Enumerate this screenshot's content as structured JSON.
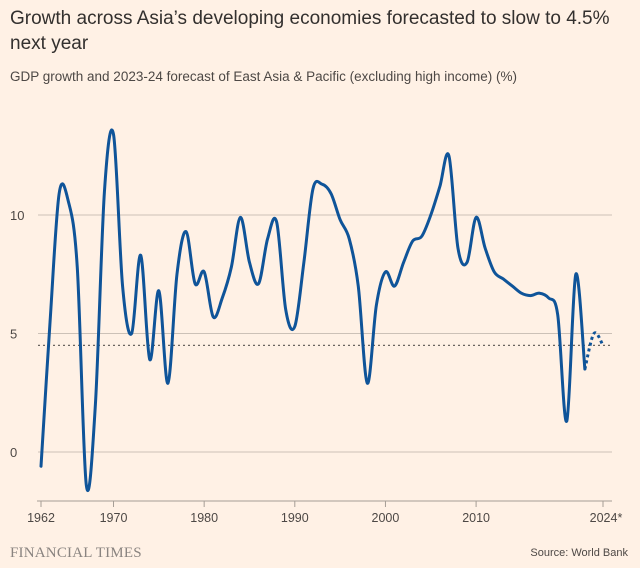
{
  "chart_data": {
    "type": "line",
    "title": "Growth across Asia’s developing economies forecasted to slow to 4.5% next year",
    "subtitle": "GDP growth and 2023-24 forecast of East Asia & Pacific (excluding high income) (%)",
    "xlabel": "",
    "ylabel": "",
    "xlim": [
      1962,
      2024
    ],
    "ylim": [
      -2,
      14
    ],
    "x_ticks": [
      1962,
      1970,
      1980,
      1990,
      2000,
      2010,
      2024
    ],
    "x_tick_labels": [
      "1962",
      "1970",
      "1980",
      "1990",
      "2000",
      "2010",
      "2024*"
    ],
    "y_ticks": [
      0,
      5,
      10
    ],
    "y_tick_labels": [
      "0",
      "5",
      "10"
    ],
    "grid": true,
    "reference_line": {
      "value": 4.5,
      "style": "dotted"
    },
    "series": [
      {
        "name": "GDP growth",
        "color": "#0F5499",
        "x": [
          1962,
          1963,
          1964,
          1965,
          1966,
          1967,
          1968,
          1969,
          1970,
          1971,
          1972,
          1973,
          1974,
          1975,
          1976,
          1977,
          1978,
          1979,
          1980,
          1981,
          1982,
          1983,
          1984,
          1985,
          1986,
          1987,
          1988,
          1989,
          1990,
          1991,
          1992,
          1993,
          1994,
          1995,
          1996,
          1997,
          1998,
          1999,
          2000,
          2001,
          2002,
          2003,
          2004,
          2005,
          2006,
          2007,
          2008,
          2009,
          2010,
          2011,
          2012,
          2013,
          2014,
          2015,
          2016,
          2017,
          2018,
          2019,
          2020,
          2021,
          2022
        ],
        "values": [
          -0.6,
          5.5,
          10.9,
          10.6,
          7.8,
          -1.4,
          2.0,
          11.0,
          13.4,
          7.0,
          5.0,
          8.3,
          3.9,
          6.8,
          2.9,
          7.5,
          9.3,
          7.1,
          7.6,
          5.7,
          6.5,
          7.8,
          9.9,
          8.0,
          7.1,
          9.0,
          9.7,
          6.0,
          5.3,
          8.0,
          11.1,
          11.3,
          10.9,
          9.8,
          9.0,
          7.0,
          2.9,
          6.2,
          7.6,
          7.0,
          8.0,
          8.9,
          9.1,
          10.0,
          11.2,
          12.5,
          8.6,
          8.0,
          9.9,
          8.6,
          7.6,
          7.3,
          7.0,
          6.7,
          6.6,
          6.7,
          6.5,
          5.8,
          1.3,
          7.5,
          3.5
        ]
      },
      {
        "name": "Forecast",
        "color": "#0F5499",
        "style": "dotted",
        "x": [
          2022,
          2023,
          2024
        ],
        "values": [
          3.5,
          5.0,
          4.5
        ]
      }
    ]
  },
  "footer": {
    "logo": "FINANCIAL TIMES",
    "source": "Source: World Bank"
  },
  "colors": {
    "background": "#FFF1E5",
    "line": "#0F5499",
    "grid": "#CCC1B7"
  }
}
